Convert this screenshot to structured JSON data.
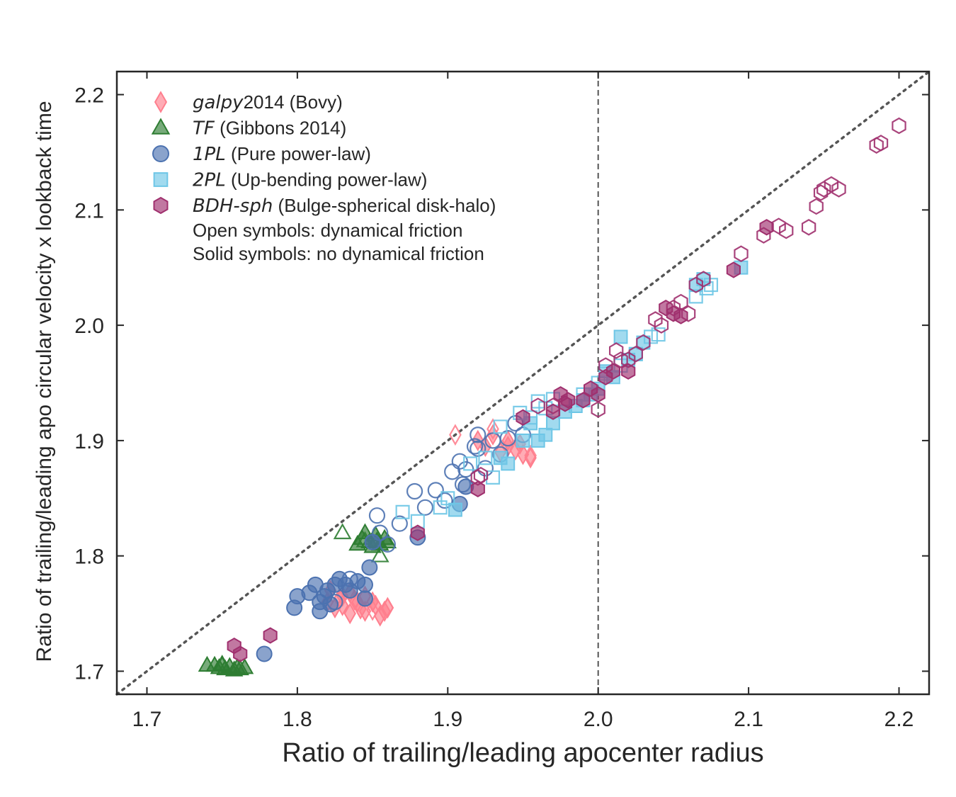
{
  "chart_data": {
    "type": "scatter",
    "xlabel": "Ratio of trailing/leading apocenter radius",
    "ylabel": "Ratio of trailing/leading apo circular velocity x lookback time",
    "xlim": [
      1.68,
      2.22
    ],
    "ylim": [
      1.68,
      2.22
    ],
    "xticks": [
      "1.7",
      "1.8",
      "1.9",
      "2.0",
      "2.1",
      "2.2"
    ],
    "yticks": [
      "1.7",
      "1.8",
      "1.9",
      "2.0",
      "2.1",
      "2.2"
    ],
    "grid": false,
    "reference_lines": [
      {
        "kind": "one-to-one",
        "style": "dotted",
        "color": "#555555"
      },
      {
        "kind": "vertical",
        "x": 2.0,
        "style": "dashed",
        "color": "#555555"
      }
    ],
    "legend": {
      "position": "top-left",
      "entries": [
        {
          "key": "galpy",
          "name_italic": "galpy",
          "name_rest": "2014 (Bovy)"
        },
        {
          "key": "tf",
          "name_italic": "TF",
          "name_rest": " (Gibbons 2014)"
        },
        {
          "key": "pl1",
          "name_italic": "1PL",
          "name_rest": " (Pure power-law)"
        },
        {
          "key": "pl2",
          "name_italic": "2PL",
          "name_rest": " (Up-bending power-law)"
        },
        {
          "key": "bdh",
          "name_italic": "BDH-sph",
          "name_rest": " (Bulge-spherical disk-halo)"
        }
      ],
      "notes": [
        "Open symbols: dynamical friction",
        "Solid symbols: no dynamical friction"
      ]
    },
    "series": [
      {
        "key": "galpy",
        "marker": "diamond",
        "color": "#ff7f8e",
        "solid": [
          [
            1.82,
            1.76
          ],
          [
            1.825,
            1.755
          ],
          [
            1.83,
            1.765
          ],
          [
            1.835,
            1.75
          ],
          [
            1.84,
            1.76
          ],
          [
            1.845,
            1.752
          ],
          [
            1.85,
            1.76
          ],
          [
            1.855,
            1.748
          ],
          [
            1.86,
            1.755
          ],
          [
            1.83,
            1.757
          ],
          [
            1.838,
            1.762
          ],
          [
            1.845,
            1.765
          ],
          [
            1.852,
            1.757
          ],
          [
            1.828,
            1.763
          ],
          [
            1.835,
            1.768
          ],
          [
            1.842,
            1.754
          ],
          [
            1.858,
            1.752
          ],
          [
            1.822,
            1.77
          ],
          [
            1.92,
            1.9
          ],
          [
            1.925,
            1.895
          ],
          [
            1.93,
            1.905
          ],
          [
            1.935,
            1.89
          ],
          [
            1.94,
            1.895
          ],
          [
            1.945,
            1.892
          ],
          [
            1.95,
            1.888
          ],
          [
            1.955,
            1.885
          ],
          [
            1.94,
            1.9
          ],
          [
            1.948,
            1.897
          ]
        ],
        "open": [
          [
            1.905,
            1.905
          ],
          [
            1.93,
            1.91
          ],
          [
            1.955,
            1.887
          ],
          [
            1.86,
            1.755
          ],
          [
            1.85,
            1.753
          ],
          [
            1.84,
            1.76
          ]
        ]
      },
      {
        "key": "tf",
        "marker": "triangle",
        "color": "#2e7d32",
        "solid": [
          [
            1.74,
            1.705
          ],
          [
            1.745,
            1.705
          ],
          [
            1.748,
            1.703
          ],
          [
            1.75,
            1.706
          ],
          [
            1.752,
            1.702
          ],
          [
            1.755,
            1.704
          ],
          [
            1.758,
            1.701
          ],
          [
            1.76,
            1.703
          ],
          [
            1.762,
            1.702
          ],
          [
            1.765,
            1.703
          ],
          [
            1.84,
            1.81
          ],
          [
            1.843,
            1.815
          ],
          [
            1.845,
            1.82
          ],
          [
            1.848,
            1.812
          ],
          [
            1.85,
            1.808
          ],
          [
            1.852,
            1.818
          ],
          [
            1.855,
            1.81
          ],
          [
            1.858,
            1.815
          ],
          [
            1.86,
            1.812
          ],
          [
            1.853,
            1.813
          ]
        ],
        "open": [
          [
            1.83,
            1.82
          ],
          [
            1.855,
            1.8
          ],
          [
            1.75,
            1.705
          ],
          [
            1.845,
            1.813
          ]
        ]
      },
      {
        "key": "pl1",
        "marker": "circle",
        "color": "#4c72b0",
        "solid": [
          [
            1.778,
            1.715
          ],
          [
            1.798,
            1.755
          ],
          [
            1.8,
            1.765
          ],
          [
            1.808,
            1.768
          ],
          [
            1.812,
            1.775
          ],
          [
            1.815,
            1.76
          ],
          [
            1.815,
            1.752
          ],
          [
            1.818,
            1.765
          ],
          [
            1.82,
            1.77
          ],
          [
            1.822,
            1.758
          ],
          [
            1.825,
            1.775
          ],
          [
            1.828,
            1.78
          ],
          [
            1.832,
            1.775
          ],
          [
            1.835,
            1.77
          ],
          [
            1.84,
            1.778
          ],
          [
            1.845,
            1.763
          ],
          [
            1.845,
            1.775
          ],
          [
            1.848,
            1.79
          ],
          [
            1.85,
            1.812
          ],
          [
            1.88,
            1.816
          ],
          [
            1.908,
            1.845
          ],
          [
            1.912,
            1.86
          ]
        ],
        "open": [
          [
            1.853,
            1.835
          ],
          [
            1.868,
            1.828
          ],
          [
            1.878,
            1.856
          ],
          [
            1.885,
            1.842
          ],
          [
            1.892,
            1.857
          ],
          [
            1.898,
            1.848
          ],
          [
            1.903,
            1.873
          ],
          [
            1.908,
            1.882
          ],
          [
            1.91,
            1.862
          ],
          [
            1.912,
            1.875
          ],
          [
            1.918,
            1.895
          ],
          [
            1.92,
            1.905
          ],
          [
            1.925,
            1.876
          ],
          [
            1.93,
            1.9
          ],
          [
            1.935,
            1.888
          ],
          [
            1.94,
            1.902
          ],
          [
            1.945,
            1.915
          ],
          [
            1.95,
            1.905
          ],
          [
            1.92,
            1.893
          ],
          [
            1.855,
            1.82
          ],
          [
            1.835,
            1.78
          ],
          [
            1.86,
            1.81
          ],
          [
            1.825,
            1.76
          ]
        ]
      },
      {
        "key": "pl2",
        "marker": "square",
        "color": "#6ec6e6",
        "solid": [
          [
            1.905,
            1.84
          ],
          [
            1.935,
            1.885
          ],
          [
            1.94,
            1.88
          ],
          [
            1.95,
            1.9
          ],
          [
            1.955,
            1.915
          ],
          [
            1.96,
            1.9
          ],
          [
            1.965,
            1.905
          ],
          [
            1.97,
            1.915
          ],
          [
            1.978,
            1.925
          ],
          [
            1.985,
            1.93
          ],
          [
            1.99,
            1.935
          ],
          [
            1.995,
            1.94
          ],
          [
            2.0,
            1.945
          ],
          [
            2.005,
            1.96
          ],
          [
            2.01,
            1.955
          ],
          [
            2.015,
            1.99
          ],
          [
            2.02,
            1.97
          ],
          [
            2.025,
            1.975
          ],
          [
            2.03,
            1.985
          ],
          [
            2.065,
            2.035
          ],
          [
            2.07,
            2.04
          ],
          [
            2.095,
            2.05
          ]
        ],
        "open": [
          [
            1.87,
            1.838
          ],
          [
            1.88,
            1.83
          ],
          [
            1.895,
            1.842
          ],
          [
            1.9,
            1.85
          ],
          [
            1.915,
            1.88
          ],
          [
            1.925,
            1.885
          ],
          [
            1.93,
            1.868
          ],
          [
            1.935,
            1.912
          ],
          [
            1.948,
            1.924
          ],
          [
            1.955,
            1.92
          ],
          [
            1.96,
            1.934
          ],
          [
            1.965,
            1.928
          ],
          [
            1.97,
            1.936
          ],
          [
            1.99,
            1.94
          ],
          [
            2.0,
            1.95
          ],
          [
            2.005,
            1.958
          ],
          [
            2.015,
            1.965
          ],
          [
            2.025,
            1.975
          ],
          [
            2.035,
            1.99
          ],
          [
            2.04,
            1.992
          ],
          [
            2.065,
            2.025
          ],
          [
            2.072,
            2.032
          ],
          [
            2.075,
            2.035
          ]
        ]
      },
      {
        "key": "bdh",
        "marker": "hexagon",
        "color": "#a0306e",
        "solid": [
          [
            1.758,
            1.722
          ],
          [
            1.762,
            1.715
          ],
          [
            1.782,
            1.731
          ],
          [
            1.88,
            1.82
          ],
          [
            1.92,
            1.858
          ],
          [
            1.95,
            1.92
          ],
          [
            1.97,
            1.925
          ],
          [
            1.975,
            1.94
          ],
          [
            1.978,
            1.932
          ],
          [
            1.98,
            1.935
          ],
          [
            1.99,
            1.935
          ],
          [
            1.995,
            1.945
          ],
          [
            2.0,
            1.94
          ],
          [
            2.005,
            1.955
          ],
          [
            2.01,
            1.96
          ],
          [
            2.02,
            1.96
          ],
          [
            2.045,
            2.015
          ],
          [
            2.05,
            2.01
          ],
          [
            2.055,
            2.008
          ],
          [
            2.09,
            2.048
          ],
          [
            2.112,
            2.085
          ]
        ],
        "open": [
          [
            1.92,
            1.868
          ],
          [
            1.922,
            1.87
          ],
          [
            1.96,
            1.93
          ],
          [
            1.97,
            1.93
          ],
          [
            2.0,
            1.927
          ],
          [
            2.005,
            1.965
          ],
          [
            2.012,
            1.978
          ],
          [
            2.015,
            1.97
          ],
          [
            2.02,
            1.97
          ],
          [
            2.025,
            1.975
          ],
          [
            2.03,
            1.985
          ],
          [
            2.038,
            2.005
          ],
          [
            2.042,
            2.0
          ],
          [
            2.05,
            2.015
          ],
          [
            2.055,
            2.02
          ],
          [
            2.06,
            2.01
          ],
          [
            2.065,
            2.035
          ],
          [
            2.07,
            2.04
          ],
          [
            2.095,
            2.062
          ],
          [
            2.11,
            2.078
          ],
          [
            2.12,
            2.086
          ],
          [
            2.125,
            2.082
          ],
          [
            2.14,
            2.085
          ],
          [
            2.145,
            2.103
          ],
          [
            2.148,
            2.115
          ],
          [
            2.15,
            2.118
          ],
          [
            2.155,
            2.122
          ],
          [
            2.16,
            2.118
          ],
          [
            2.185,
            2.156
          ],
          [
            2.188,
            2.158
          ],
          [
            2.2,
            2.173
          ]
        ]
      }
    ]
  }
}
